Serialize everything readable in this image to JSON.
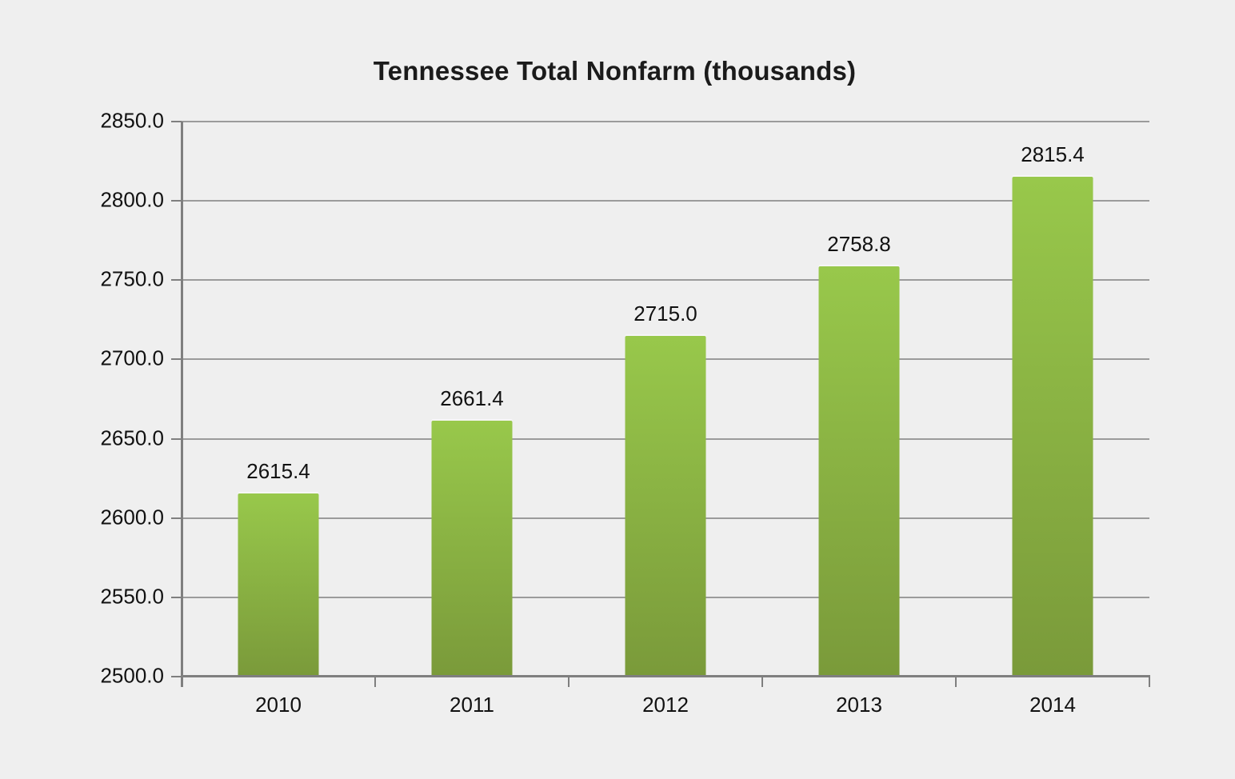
{
  "page": {
    "background": "#efefef"
  },
  "chart_data": {
    "type": "bar",
    "title": "Tennessee Total Nonfarm (thousands)",
    "categories": [
      "2010",
      "2011",
      "2012",
      "2013",
      "2014"
    ],
    "values": [
      2615.4,
      2661.4,
      2715.0,
      2758.8,
      2815.4
    ],
    "value_labels": [
      "2615.4",
      "2661.4",
      "2715.0",
      "2758.8",
      "2815.4"
    ],
    "xlabel": "",
    "ylabel": "",
    "ylim": [
      2500,
      2850
    ],
    "ytick_step": 50,
    "ytick_labels": [
      "2850.0",
      "2800.0",
      "2750.0",
      "2700.0",
      "2650.0",
      "2600.0",
      "2550.0",
      "2500.0"
    ],
    "grid": true,
    "legend": "none",
    "colors": {
      "bar_gradient_top": "#98c84b",
      "bar_gradient_bottom": "#7a9a3a",
      "gridline": "#9b9b9b",
      "axis": "#7f7f7f",
      "text": "#111111",
      "title_text": "#1b1b1b",
      "background": "#efefef"
    }
  }
}
